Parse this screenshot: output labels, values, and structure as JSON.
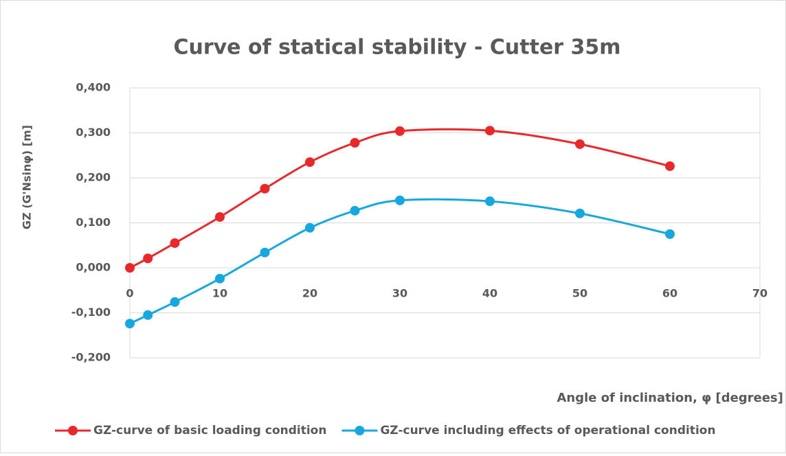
{
  "chart_data": {
    "type": "line",
    "title": "Curve of statical stability - Cutter 35m",
    "x_label": "Angle of inclination, φ [degrees]",
    "y_label": "GZ (G'Nsinφ) [m]",
    "x": [
      0,
      2,
      5,
      10,
      15,
      20,
      25,
      30,
      40,
      50,
      60
    ],
    "series": [
      {
        "name": "GZ-curve of basic loading condition",
        "color": "#e8282b",
        "values": [
          0,
          0.021,
          0.055,
          0.113,
          0.176,
          0.235,
          0.278,
          0.304,
          0.305,
          0.275,
          0.226
        ]
      },
      {
        "name": "GZ-curve including effects of operational condition",
        "color": "#17a7df",
        "values": [
          -0.124,
          -0.105,
          -0.076,
          -0.024,
          0.034,
          0.089,
          0.127,
          0.15,
          0.148,
          0.121,
          0.075
        ]
      }
    ],
    "xlim": [
      0,
      70
    ],
    "xticks": [
      0,
      10,
      20,
      30,
      40,
      50,
      60,
      70
    ],
    "ylim": [
      -0.2,
      0.4
    ],
    "yticks": [
      {
        "value": -0.2,
        "label": "-0,200"
      },
      {
        "value": -0.1,
        "label": "-0,100"
      },
      {
        "value": 0,
        "label": "0,000"
      },
      {
        "value": 0.1,
        "label": "0,100"
      },
      {
        "value": 0.2,
        "label": "0,200"
      },
      {
        "value": 0.3,
        "label": "0,300"
      },
      {
        "value": 0.4,
        "label": "0,400"
      }
    ],
    "grid": true,
    "smooth": true,
    "legend": "bottom"
  }
}
